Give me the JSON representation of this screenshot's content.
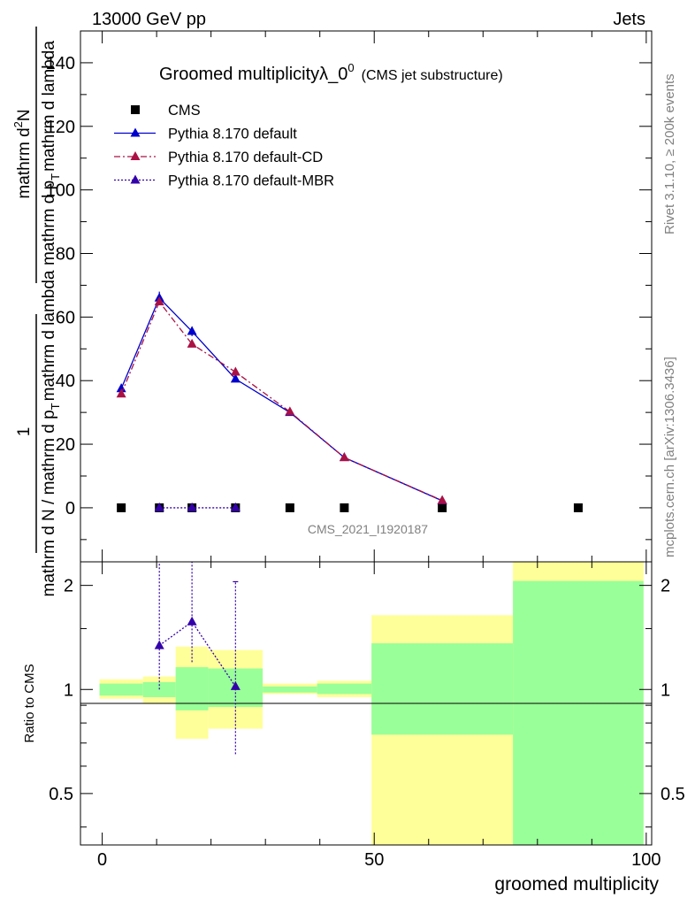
{
  "header": {
    "left": "13000 GeV pp",
    "right": "Jets"
  },
  "side_text": {
    "rivet": "Rivet 3.1.10, ≥ 200k events",
    "mcplots": "mcplots.cern.ch [arXiv:1306.3436]"
  },
  "watermark": "CMS_2021_I1920187",
  "colors": {
    "cms": "#000000",
    "default": "#0000cc",
    "cd": "#aa1144",
    "mbr": "#3300aa",
    "band_green": "#99ff99",
    "band_yellow": "#ffff99"
  },
  "chart_data": [
    {
      "type": "line",
      "title": "Groomed multiplicityλ_0",
      "title_sup": "0",
      "title_note": "(CMS jet substructure)",
      "ylabel": {
        "num_1": "1",
        "den_1": "mathrm d N / mathrm d p",
        "den_1_sub": "T",
        "den_1_tail": "mathrm d lambda",
        "num_2": "mathrm d",
        "num_2_sup": "2",
        "num_2_tail": "N",
        "den_2": "mathrm d p",
        "den_2_sub": "T",
        "den_2_tail": "mathrm d lambda"
      },
      "xlim": [
        -4,
        101
      ],
      "ylim": [
        -17,
        150
      ],
      "yticks": [
        0,
        20,
        40,
        60,
        80,
        100,
        120,
        140
      ],
      "ytick_labels": [
        "0",
        "20",
        "40",
        "60",
        "80",
        "100",
        "120",
        "140"
      ],
      "legend_position": "top-left",
      "series": [
        {
          "name": "CMS",
          "key": "cms",
          "marker": "square",
          "x": [
            3.5,
            10.5,
            16.5,
            24.5,
            34.5,
            44.5,
            62.5,
            87.5
          ],
          "y": [
            0,
            0,
            0,
            0,
            0,
            0,
            0,
            0
          ]
        },
        {
          "name": "Pythia 8.170 default",
          "key": "default",
          "marker": "triangle",
          "line": "solid",
          "x": [
            3.5,
            10.5,
            16.5,
            24.5,
            34.5,
            44.5,
            62.5
          ],
          "y": [
            37.5,
            66,
            55.5,
            40.5,
            30,
            15.8,
            2.2
          ],
          "err": [
            1.5,
            2,
            1.5,
            1,
            1,
            0.6,
            0.3
          ]
        },
        {
          "name": "Pythia 8.170 default-CD",
          "key": "cd",
          "marker": "triangle",
          "line": "dashdot",
          "x": [
            3.5,
            10.5,
            16.5,
            24.5,
            34.5,
            44.5,
            62.5
          ],
          "y": [
            35.8,
            64.8,
            51.5,
            42.7,
            30.2,
            15.8,
            2.3
          ],
          "err": [
            1,
            1,
            1,
            1,
            1,
            0.5,
            0.3
          ]
        },
        {
          "name": "Pythia 8.170 default-MBR",
          "key": "mbr",
          "marker": "triangle",
          "line": "dotted",
          "x": [
            10.5,
            16.5,
            24.5
          ],
          "y": [
            0,
            0,
            0
          ],
          "err": [
            0,
            0,
            0
          ]
        }
      ]
    },
    {
      "type": "line",
      "title": "",
      "xlabel": "groomed multiplicity",
      "ylabel": "Ratio to CMS",
      "xlim": [
        -4,
        101
      ],
      "ylim": [
        0.355,
        2.34
      ],
      "log_y": true,
      "xticks": [
        0,
        50,
        100
      ],
      "xtick_labels": [
        "0",
        "50",
        "100"
      ],
      "yticks": [
        0.5,
        1,
        2
      ],
      "ytick_labels": [
        "0.5",
        "1",
        "2"
      ],
      "bands": [
        {
          "x0": -0.5,
          "x1": 7.5,
          "green": [
            0.96,
            1.04
          ],
          "yellow": [
            0.94,
            1.07
          ]
        },
        {
          "x0": 7.5,
          "x1": 13.5,
          "green": [
            0.95,
            1.05
          ],
          "yellow": [
            0.91,
            1.09
          ]
        },
        {
          "x0": 13.5,
          "x1": 19.5,
          "green": [
            0.87,
            1.16
          ],
          "yellow": [
            0.72,
            1.33
          ]
        },
        {
          "x0": 19.5,
          "x1": 29.5,
          "green": [
            0.89,
            1.15
          ],
          "yellow": [
            0.77,
            1.3
          ]
        },
        {
          "x0": 29.5,
          "x1": 39.5,
          "green": [
            0.98,
            1.02
          ],
          "yellow": [
            0.97,
            1.04
          ]
        },
        {
          "x0": 39.5,
          "x1": 49.5,
          "green": [
            0.97,
            1.04
          ],
          "yellow": [
            0.95,
            1.06
          ]
        },
        {
          "x0": 49.5,
          "x1": 75.5,
          "green": [
            0.74,
            1.36
          ],
          "yellow": [
            0.35,
            1.64
          ]
        },
        {
          "x0": 75.5,
          "x1": 99.5,
          "green": [
            0.35,
            2.06
          ],
          "yellow": [
            0.35,
            2.34
          ]
        }
      ],
      "series": [
        {
          "name": "Pythia 8.170 default-MBR",
          "key": "mbr",
          "marker": "triangle",
          "line": "dotted",
          "x": [
            10.5,
            16.5,
            24.5
          ],
          "y": [
            1.34,
            1.57,
            1.02
          ],
          "err_lo": [
            1,
            1.2,
            0.65
          ],
          "err_hi": [
            2.34,
            2.34,
            2.05
          ]
        }
      ]
    }
  ]
}
